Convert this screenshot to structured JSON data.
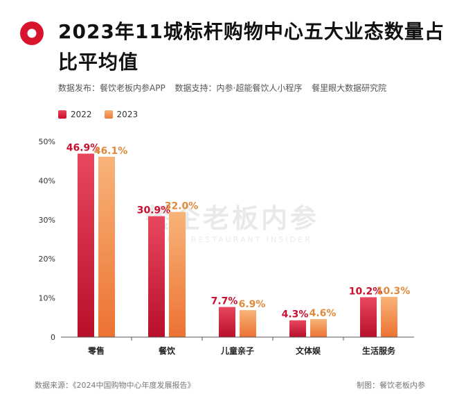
{
  "header": {
    "title": "2023年11城标杆购物中心五大业态数量占比平均值",
    "sources": [
      "数据发布：餐饮老板内参APP",
      "数据支持：内参·超能餐饮人小程序",
      "餐里眼大数据研究院"
    ]
  },
  "colors": {
    "y2022": "#c8102e",
    "y2023": "#ee7a3a",
    "logo": "#d7142b"
  },
  "chart_data": {
    "type": "bar",
    "categories": [
      "零售",
      "餐饮",
      "儿童亲子",
      "文体娱",
      "生活服务"
    ],
    "series": [
      {
        "name": "2022",
        "values": [
          46.9,
          30.9,
          7.7,
          4.3,
          10.2
        ],
        "labels": [
          "46.9%",
          "30.9%",
          "7.7%",
          "4.3%",
          "10.2%"
        ]
      },
      {
        "name": "2023",
        "values": [
          46.1,
          32.0,
          6.9,
          4.6,
          10.3
        ],
        "labels": [
          "46.1%",
          "32.0%",
          "6.9%",
          "4.6%",
          "10.3%"
        ]
      }
    ],
    "yticks": [
      "0",
      "10%",
      "20%",
      "30%",
      "40%",
      "50%"
    ],
    "ylim": [
      0,
      50
    ],
    "ylabel": "",
    "xlabel": "",
    "legend": "top-left",
    "grid": false
  },
  "watermark": {
    "cn": "餐企老板内参",
    "en": "CHINA RESTAURANT INSIDER"
  },
  "footer": {
    "source": "数据来源：《2024中国购物中心年度发展报告》",
    "credit": "制图：餐饮老板内参"
  }
}
